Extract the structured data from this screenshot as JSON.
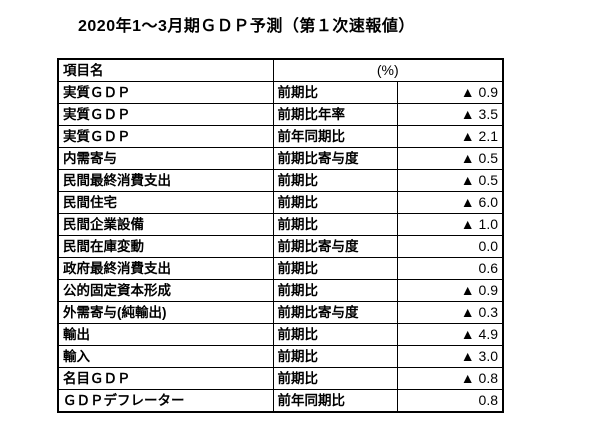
{
  "title": "2020年1～3月期ＧＤＰ予測（第１次速報値）",
  "colors": {
    "background": "#ffffff",
    "text": "#000000",
    "border": "#000000"
  },
  "table": {
    "unit": "(%)",
    "header": {
      "item_col": "項目名",
      "value_col": "(%)"
    },
    "negative_marker": "▲",
    "rows": [
      {
        "item": "実質ＧＤＰ",
        "measure": "前期比",
        "value": "▲ 0.9"
      },
      {
        "item": "実質ＧＤＰ",
        "measure": "前期比年率",
        "value": "▲ 3.5"
      },
      {
        "item": "実質ＧＤＰ",
        "measure": "前年同期比",
        "value": "▲ 2.1"
      },
      {
        "item": "内需寄与",
        "measure": "前期比寄与度",
        "value": "▲ 0.5"
      },
      {
        "item": "民間最終消費支出",
        "measure": "前期比",
        "value": "▲ 0.5"
      },
      {
        "item": "民間住宅",
        "measure": "前期比",
        "value": "▲ 6.0"
      },
      {
        "item": "民間企業設備",
        "measure": "前期比",
        "value": "▲ 1.0"
      },
      {
        "item": "民間在庫変動",
        "measure": "前期比寄与度",
        "value": "0.0"
      },
      {
        "item": "政府最終消費支出",
        "measure": "前期比",
        "value": "0.6"
      },
      {
        "item": "公的固定資本形成",
        "measure": "前期比",
        "value": "▲ 0.9"
      },
      {
        "item": "外需寄与(純輸出)",
        "measure": "前期比寄与度",
        "value": "▲ 0.3"
      },
      {
        "item": "輸出",
        "measure": "前期比",
        "value": "▲ 4.9"
      },
      {
        "item": "輸入",
        "measure": "前期比",
        "value": "▲ 3.0"
      },
      {
        "item": "名目ＧＤＰ",
        "measure": "前期比",
        "value": "▲ 0.8"
      },
      {
        "item": "ＧＤＰデフレーター",
        "measure": "前年同期比",
        "value": "0.8"
      }
    ]
  }
}
